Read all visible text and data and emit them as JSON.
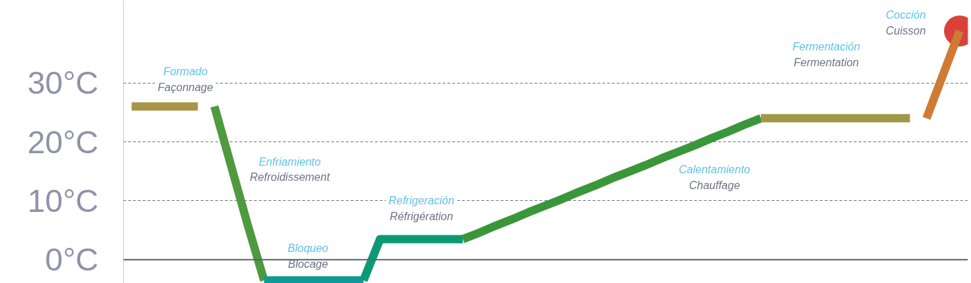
{
  "chart_data": {
    "type": "line",
    "categories": [
      null,
      null,
      null,
      null,
      null,
      null,
      null,
      null,
      null,
      null,
      null,
      null,
      null,
      null,
      null,
      null,
      null,
      null,
      null,
      null,
      null,
      null,
      null,
      null,
      null,
      null,
      null,
      null,
      null,
      null,
      null,
      null,
      null,
      null,
      null,
      null,
      null,
      null,
      null,
      null,
      null,
      null,
      null,
      null,
      null,
      null,
      null,
      null,
      null,
      null,
      null
    ],
    "ylim": [
      -4,
      44
    ],
    "yticks": [
      {
        "value": 0,
        "label": "0°C"
      },
      {
        "value": 10,
        "label": "10°C"
      },
      {
        "value": 20,
        "label": "20°C"
      },
      {
        "value": 30,
        "label": "30°C"
      }
    ],
    "tick_labels": "y",
    "grid": "y",
    "line_style": "solid",
    "series": [
      {
        "color": "#a89548",
        "values": [
          26,
          26,
          26,
          26,
          26,
          null,
          null,
          null,
          null,
          null,
          null,
          null,
          null,
          null,
          null,
          null,
          null,
          null,
          null,
          null,
          null,
          null,
          null,
          null,
          null,
          null,
          null,
          null,
          null,
          null,
          null,
          null,
          null,
          null,
          null,
          null,
          null,
          null,
          null,
          null,
          null,
          null,
          null,
          null,
          null,
          null,
          null,
          null,
          null,
          null,
          null
        ]
      },
      {
        "color": "#4f9a3e",
        "values": [
          null,
          null,
          null,
          null,
          null,
          26,
          16,
          6,
          -3.5,
          null,
          null,
          null,
          null,
          null,
          null,
          null,
          null,
          null,
          null,
          null,
          null,
          null,
          null,
          null,
          null,
          null,
          null,
          null,
          null,
          null,
          null,
          null,
          null,
          null,
          null,
          null,
          null,
          null,
          null,
          null,
          null,
          null,
          null,
          null,
          null,
          null,
          null,
          null,
          null,
          null,
          null
        ]
      },
      {
        "color": "#0f9a94",
        "values": [
          null,
          null,
          null,
          null,
          null,
          null,
          null,
          null,
          -3.5,
          -3.5,
          -3.5,
          -3.5,
          -3.5,
          -3.5,
          -3.5,
          null,
          null,
          null,
          null,
          null,
          null,
          null,
          null,
          null,
          null,
          null,
          null,
          null,
          null,
          null,
          null,
          null,
          null,
          null,
          null,
          null,
          null,
          null,
          null,
          null,
          null,
          null,
          null,
          null,
          null,
          null,
          null,
          null,
          null,
          null,
          null
        ]
      },
      {
        "color": "#0c9a74",
        "values": [
          null,
          null,
          null,
          null,
          null,
          null,
          null,
          null,
          null,
          null,
          null,
          null,
          null,
          null,
          -3.5,
          3.5,
          3.5,
          3.5,
          3.5,
          3.5,
          3.5,
          null,
          null,
          null,
          null,
          null,
          null,
          null,
          null,
          null,
          null,
          null,
          null,
          null,
          null,
          null,
          null,
          null,
          null,
          null,
          null,
          null,
          null,
          null,
          null,
          null,
          null,
          null,
          null,
          null,
          null
        ]
      },
      {
        "color": "#3a963a",
        "values": [
          null,
          null,
          null,
          null,
          null,
          null,
          null,
          null,
          null,
          null,
          null,
          null,
          null,
          null,
          null,
          null,
          null,
          null,
          null,
          null,
          3.5,
          4.6,
          5.8,
          6.9,
          8.1,
          9.2,
          10.3,
          11.5,
          12.6,
          13.8,
          14.9,
          16,
          17.2,
          18.3,
          19.4,
          20.6,
          21.7,
          22.9,
          24,
          null,
          null,
          null,
          null,
          null,
          null,
          null,
          null,
          null,
          null,
          null,
          null
        ]
      },
      {
        "color": "#a09848",
        "values": [
          null,
          null,
          null,
          null,
          null,
          null,
          null,
          null,
          null,
          null,
          null,
          null,
          null,
          null,
          null,
          null,
          null,
          null,
          null,
          null,
          null,
          null,
          null,
          null,
          null,
          null,
          null,
          null,
          null,
          null,
          null,
          null,
          null,
          null,
          null,
          null,
          null,
          null,
          24,
          24,
          24,
          24,
          24,
          24,
          24,
          24,
          24,
          24,
          null,
          null,
          null
        ]
      },
      {
        "color": "#cf7a35",
        "values": [
          null,
          null,
          null,
          null,
          null,
          null,
          null,
          null,
          null,
          null,
          null,
          null,
          null,
          null,
          null,
          null,
          null,
          null,
          null,
          null,
          null,
          null,
          null,
          null,
          null,
          null,
          null,
          null,
          null,
          null,
          null,
          null,
          null,
          null,
          null,
          null,
          null,
          null,
          null,
          null,
          null,
          null,
          null,
          null,
          null,
          null,
          null,
          null,
          24,
          31.4,
          38.8
        ]
      },
      {
        "type": "scatter",
        "marker": "circle",
        "color": "#d9423a",
        "values": [
          null,
          null,
          null,
          null,
          null,
          null,
          null,
          null,
          null,
          null,
          null,
          null,
          null,
          null,
          null,
          null,
          null,
          null,
          null,
          null,
          null,
          null,
          null,
          null,
          null,
          null,
          null,
          null,
          null,
          null,
          null,
          null,
          null,
          null,
          null,
          null,
          null,
          null,
          null,
          null,
          null,
          null,
          null,
          null,
          null,
          null,
          null,
          null,
          null,
          null,
          38.8
        ]
      }
    ],
    "ref_lines": [
      {
        "axis": "y",
        "value": 0,
        "color": "#5a6072",
        "line_style": "solid"
      }
    ],
    "annotations": [
      "Formado",
      "Façonnage",
      "Enfriamiento",
      "Refroidissement",
      "Bloqueo",
      "Blocage",
      "Refrigeración",
      "Réfrigération",
      "Calentamiento",
      "Chauffage",
      "Fermentación",
      "Fermentation",
      "Cocción",
      "Cuisson"
    ]
  }
}
